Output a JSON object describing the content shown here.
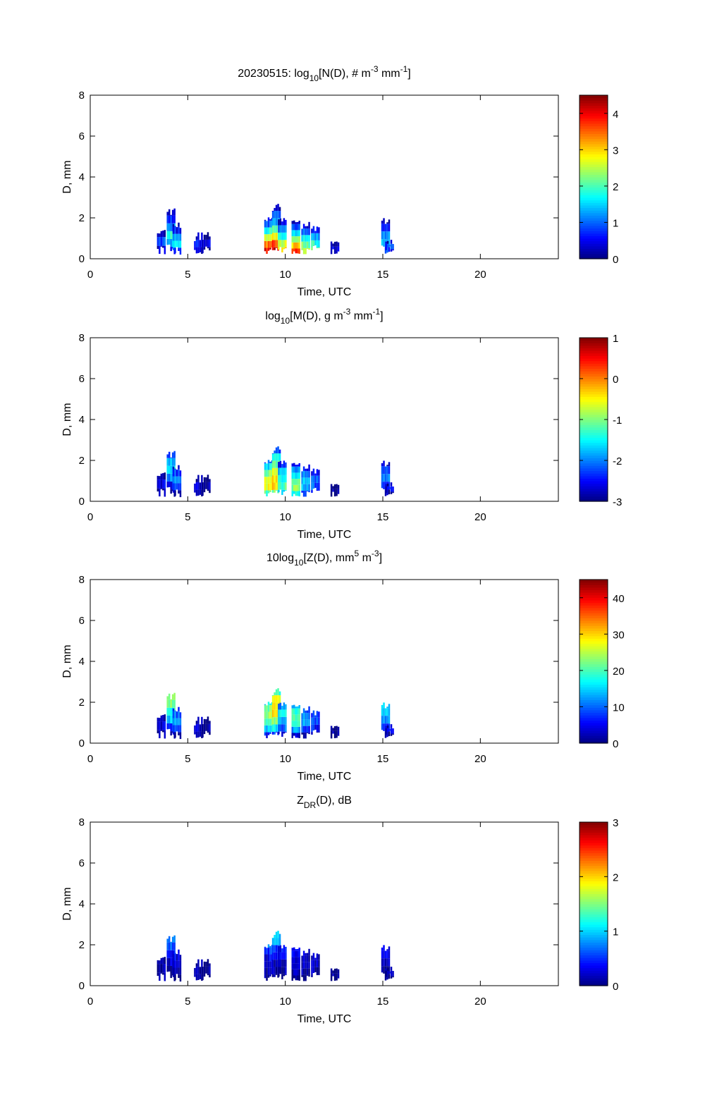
{
  "chart_data": [
    {
      "type": "heatmap",
      "title": {
        "prefix": "20230515: log",
        "sub": "10",
        "middle": "[N(D), # m",
        "sup1": "-3",
        "middle2": " mm",
        "sup2": "-1",
        "suffix": "]"
      },
      "xlabel": "Time, UTC",
      "ylabel": "D, mm",
      "xlim": [
        0,
        24
      ],
      "ylim": [
        0,
        8
      ],
      "xticks": [
        "0",
        "5",
        "10",
        "15",
        "20"
      ],
      "yticks": [
        "0",
        "2",
        "4",
        "6",
        "8"
      ],
      "colorbar": {
        "range": [
          0,
          4.5
        ],
        "ticks": [
          "0",
          "1",
          "2",
          "3",
          "4"
        ]
      },
      "values_at_D": [
        {
          "time": 3.6,
          "levels": [
            0.3,
            0.9,
            0.3
          ],
          "d_max": 1.5
        },
        {
          "time": 4.1,
          "levels": [
            0.6,
            1.4,
            1.8,
            1.2,
            0.7,
            0.4
          ],
          "d_max": 2.5
        },
        {
          "time": 4.4,
          "levels": [
            0.8,
            1.6,
            1.2,
            0.6,
            0.3
          ],
          "d_max": 1.9
        },
        {
          "time": 5.5,
          "levels": [
            0.3,
            0.6,
            0.3
          ],
          "d_max": 1.3
        },
        {
          "time": 5.9,
          "levels": [
            0.3,
            0.5,
            0.2
          ],
          "d_max": 1.3
        },
        {
          "time": 9.1,
          "levels": [
            4.0,
            3.4,
            2.6,
            1.8,
            1.0,
            0.4
          ],
          "d_max": 2.2
        },
        {
          "time": 9.5,
          "levels": [
            4.2,
            3.6,
            2.9,
            2.1,
            1.4,
            0.8,
            0.3
          ],
          "d_max": 2.7
        },
        {
          "time": 9.8,
          "levels": [
            3.0,
            2.6,
            1.8,
            1.0,
            0.4
          ],
          "d_max": 2.0
        },
        {
          "time": 10.5,
          "levels": [
            3.8,
            3.0,
            2.2,
            1.5,
            0.8,
            0.3
          ],
          "d_max": 2.0
        },
        {
          "time": 11.0,
          "levels": [
            2.6,
            2.2,
            1.6,
            1.0,
            0.5
          ],
          "d_max": 1.8
        },
        {
          "time": 11.5,
          "levels": [
            2.2,
            1.8,
            1.2,
            0.6
          ],
          "d_max": 1.6
        },
        {
          "time": 12.5,
          "levels": [
            0.4,
            0.3
          ],
          "d_max": 1.0
        },
        {
          "time": 15.1,
          "levels": [
            0.9,
            1.4,
            1.2,
            0.6,
            0.3
          ],
          "d_max": 2.1
        },
        {
          "time": 15.3,
          "levels": [
            0.5,
            0.8,
            0.3
          ],
          "d_max": 1.0
        }
      ]
    },
    {
      "type": "heatmap",
      "title": {
        "prefix": "log",
        "sub": "10",
        "middle": "[M(D), g m",
        "sup1": "-3",
        "middle2": " mm",
        "sup2": "-1",
        "suffix": "]"
      },
      "xlabel": "Time, UTC",
      "ylabel": "D, mm",
      "xlim": [
        0,
        24
      ],
      "ylim": [
        0,
        8
      ],
      "xticks": [
        "0",
        "5",
        "10",
        "15",
        "20"
      ],
      "yticks": [
        "0",
        "2",
        "4",
        "6",
        "8"
      ],
      "colorbar": {
        "range": [
          -3,
          1
        ],
        "ticks": [
          "-3",
          "-2",
          "-1",
          "0",
          "1"
        ]
      },
      "values_at_D": [
        {
          "time": 3.6,
          "levels": [
            -2.9,
            -2.6,
            -2.8
          ],
          "d_max": 1.5
        },
        {
          "time": 4.1,
          "levels": [
            -2.9,
            -2.5,
            -2.0,
            -1.6,
            -1.8,
            -2.2
          ],
          "d_max": 2.5
        },
        {
          "time": 4.4,
          "levels": [
            -2.8,
            -2.3,
            -2.0,
            -2.3,
            -2.6
          ],
          "d_max": 1.9
        },
        {
          "time": 5.5,
          "levels": [
            -2.9,
            -2.7,
            -2.9
          ],
          "d_max": 1.3
        },
        {
          "time": 5.9,
          "levels": [
            -2.9,
            -2.8,
            -2.9
          ],
          "d_max": 1.3
        },
        {
          "time": 9.1,
          "levels": [
            -1.2,
            -0.6,
            -0.6,
            -1.0,
            -1.6,
            -2.2
          ],
          "d_max": 2.2
        },
        {
          "time": 9.5,
          "levels": [
            -1.0,
            -0.4,
            -0.3,
            -0.6,
            -1.0,
            -1.6,
            -2.2
          ],
          "d_max": 2.7
        },
        {
          "time": 9.8,
          "levels": [
            -1.6,
            -1.2,
            -1.4,
            -1.8,
            -2.4
          ],
          "d_max": 2.0
        },
        {
          "time": 10.5,
          "levels": [
            -1.4,
            -1.0,
            -1.2,
            -1.6,
            -2.0,
            -2.5
          ],
          "d_max": 2.0
        },
        {
          "time": 11.0,
          "levels": [
            -2.2,
            -1.8,
            -1.8,
            -2.0,
            -2.4
          ],
          "d_max": 1.8
        },
        {
          "time": 11.5,
          "levels": [
            -2.5,
            -2.2,
            -2.2,
            -2.5
          ],
          "d_max": 1.6
        },
        {
          "time": 12.5,
          "levels": [
            -2.9,
            -2.9
          ],
          "d_max": 1.0
        },
        {
          "time": 15.1,
          "levels": [
            -2.8,
            -2.3,
            -2.0,
            -2.3,
            -2.6
          ],
          "d_max": 2.1
        },
        {
          "time": 15.3,
          "levels": [
            -2.9,
            -2.6,
            -2.8
          ],
          "d_max": 1.0
        }
      ]
    },
    {
      "type": "heatmap",
      "title": {
        "prefix": "10log",
        "sub": "10",
        "middle": "[Z(D),  mm",
        "sup1": "5",
        "middle2": " m",
        "sup2": "-3",
        "suffix": "]"
      },
      "xlabel": "Time, UTC",
      "ylabel": "D, mm",
      "xlim": [
        0,
        24
      ],
      "ylim": [
        0,
        8
      ],
      "xticks": [
        "0",
        "5",
        "10",
        "15",
        "20"
      ],
      "yticks": [
        "0",
        "2",
        "4",
        "6",
        "8"
      ],
      "colorbar": {
        "range": [
          0,
          45
        ],
        "ticks": [
          "0",
          "10",
          "20",
          "30",
          "40"
        ]
      },
      "values_at_D": [
        {
          "time": 3.6,
          "levels": [
            1,
            4,
            3
          ],
          "d_max": 1.5
        },
        {
          "time": 4.1,
          "levels": [
            2,
            8,
            14,
            18,
            22,
            24
          ],
          "d_max": 2.5
        },
        {
          "time": 4.4,
          "levels": [
            2,
            8,
            12,
            10,
            8
          ],
          "d_max": 1.9
        },
        {
          "time": 5.5,
          "levels": [
            1,
            3,
            2
          ],
          "d_max": 1.3
        },
        {
          "time": 5.9,
          "levels": [
            1,
            2,
            1
          ],
          "d_max": 1.3
        },
        {
          "time": 9.1,
          "levels": [
            6,
            14,
            20,
            24,
            22,
            16
          ],
          "d_max": 2.2
        },
        {
          "time": 9.5,
          "levels": [
            8,
            16,
            24,
            30,
            30,
            26,
            20
          ],
          "d_max": 2.7
        },
        {
          "time": 9.8,
          "levels": [
            4,
            10,
            14,
            16,
            12
          ],
          "d_max": 2.0
        },
        {
          "time": 10.5,
          "levels": [
            4,
            12,
            18,
            20,
            18,
            14
          ],
          "d_max": 2.0
        },
        {
          "time": 11.0,
          "levels": [
            2,
            8,
            12,
            12,
            10
          ],
          "d_max": 1.8
        },
        {
          "time": 11.5,
          "levels": [
            2,
            6,
            8,
            8
          ],
          "d_max": 1.6
        },
        {
          "time": 12.5,
          "levels": [
            1,
            2
          ],
          "d_max": 1.0
        },
        {
          "time": 15.1,
          "levels": [
            2,
            8,
            12,
            14,
            16
          ],
          "d_max": 2.1
        },
        {
          "time": 15.3,
          "levels": [
            1,
            4,
            3
          ],
          "d_max": 1.0
        }
      ]
    },
    {
      "type": "heatmap",
      "title": {
        "prefix": "Z",
        "sub": "DR",
        "middle": "(D), dB",
        "sup1": "",
        "middle2": "",
        "sup2": "",
        "suffix": ""
      },
      "xlabel": "Time, UTC",
      "ylabel": "D, mm",
      "xlim": [
        0,
        24
      ],
      "ylim": [
        0,
        8
      ],
      "xticks": [
        "0",
        "5",
        "10",
        "15",
        "20"
      ],
      "yticks": [
        "0",
        "2",
        "4",
        "6",
        "8"
      ],
      "colorbar": {
        "range": [
          0,
          3
        ],
        "ticks": [
          "0",
          "1",
          "2",
          "3"
        ]
      },
      "values_at_D": [
        {
          "time": 3.6,
          "levels": [
            0.05,
            0.1,
            0.15
          ],
          "d_max": 1.5
        },
        {
          "time": 4.1,
          "levels": [
            0.05,
            0.1,
            0.2,
            0.4,
            0.6,
            0.8
          ],
          "d_max": 2.5
        },
        {
          "time": 4.4,
          "levels": [
            0.05,
            0.1,
            0.2,
            0.3,
            0.4
          ],
          "d_max": 1.9
        },
        {
          "time": 5.5,
          "levels": [
            0.05,
            0.1,
            0.1
          ],
          "d_max": 1.3
        },
        {
          "time": 5.9,
          "levels": [
            0.05,
            0.1,
            0.1
          ],
          "d_max": 1.3
        },
        {
          "time": 9.1,
          "levels": [
            0.05,
            0.1,
            0.2,
            0.3,
            0.5,
            0.7
          ],
          "d_max": 2.2
        },
        {
          "time": 9.5,
          "levels": [
            0.05,
            0.1,
            0.2,
            0.4,
            0.6,
            0.8,
            1.0
          ],
          "d_max": 2.7
        },
        {
          "time": 9.8,
          "levels": [
            0.05,
            0.1,
            0.2,
            0.3,
            0.4
          ],
          "d_max": 2.0
        },
        {
          "time": 10.5,
          "levels": [
            0.05,
            0.1,
            0.15,
            0.2,
            0.3,
            0.4
          ],
          "d_max": 2.0
        },
        {
          "time": 11.0,
          "levels": [
            0.05,
            0.1,
            0.15,
            0.2,
            0.3
          ],
          "d_max": 1.8
        },
        {
          "time": 11.5,
          "levels": [
            0.05,
            0.1,
            0.15,
            0.2
          ],
          "d_max": 1.6
        },
        {
          "time": 12.5,
          "levels": [
            0.05,
            0.1
          ],
          "d_max": 1.0
        },
        {
          "time": 15.1,
          "levels": [
            0.05,
            0.1,
            0.2,
            0.3,
            0.4
          ],
          "d_max": 2.1
        },
        {
          "time": 15.3,
          "levels": [
            0.05,
            0.1,
            0.1
          ],
          "d_max": 1.0
        }
      ]
    }
  ]
}
